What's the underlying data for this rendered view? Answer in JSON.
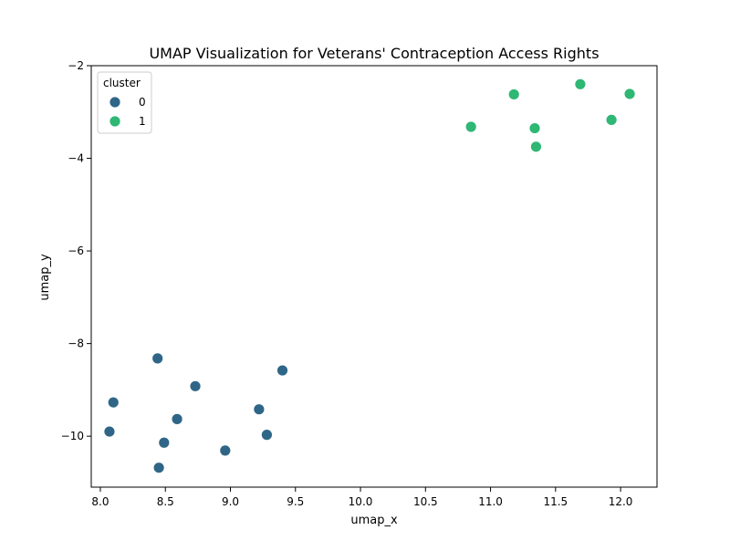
{
  "chart_data": {
    "type": "scatter",
    "title": "UMAP Visualization for Veterans' Contraception Access Rights",
    "xlabel": "umap_x",
    "ylabel": "umap_y",
    "xlim": [
      7.93,
      12.28
    ],
    "ylim": [
      -11.1,
      -2.0
    ],
    "x_ticks": [
      8.0,
      8.5,
      9.0,
      9.5,
      10.0,
      10.5,
      11.0,
      11.5,
      12.0
    ],
    "x_tick_labels": [
      "8.0",
      "8.5",
      "9.0",
      "9.5",
      "10.0",
      "10.5",
      "11.0",
      "11.5",
      "12.0"
    ],
    "y_ticks": [
      -2,
      -4,
      -6,
      -8,
      -10
    ],
    "y_tick_labels": [
      "−2",
      "−4",
      "−6",
      "−8",
      "−10"
    ],
    "grid": false,
    "legend": {
      "title": "cluster",
      "placement": "top-left",
      "entries": [
        {
          "label": "0",
          "color": "#2f6687"
        },
        {
          "label": "1",
          "color": "#2fb774"
        }
      ]
    },
    "series": [
      {
        "name": "0",
        "color": "#2f6687",
        "points": [
          [
            8.44,
            -8.32
          ],
          [
            8.73,
            -8.92
          ],
          [
            9.4,
            -8.58
          ],
          [
            8.1,
            -9.27
          ],
          [
            8.59,
            -9.63
          ],
          [
            9.22,
            -9.42
          ],
          [
            8.07,
            -9.9
          ],
          [
            9.28,
            -9.97
          ],
          [
            8.49,
            -10.14
          ],
          [
            8.96,
            -10.31
          ],
          [
            8.45,
            -10.68
          ]
        ]
      },
      {
        "name": "1",
        "color": "#2fb774",
        "points": [
          [
            10.85,
            -3.32
          ],
          [
            11.18,
            -2.62
          ],
          [
            11.34,
            -3.35
          ],
          [
            11.35,
            -3.75
          ],
          [
            11.69,
            -2.4
          ],
          [
            11.93,
            -3.17
          ],
          [
            12.07,
            -2.61
          ]
        ]
      }
    ]
  }
}
